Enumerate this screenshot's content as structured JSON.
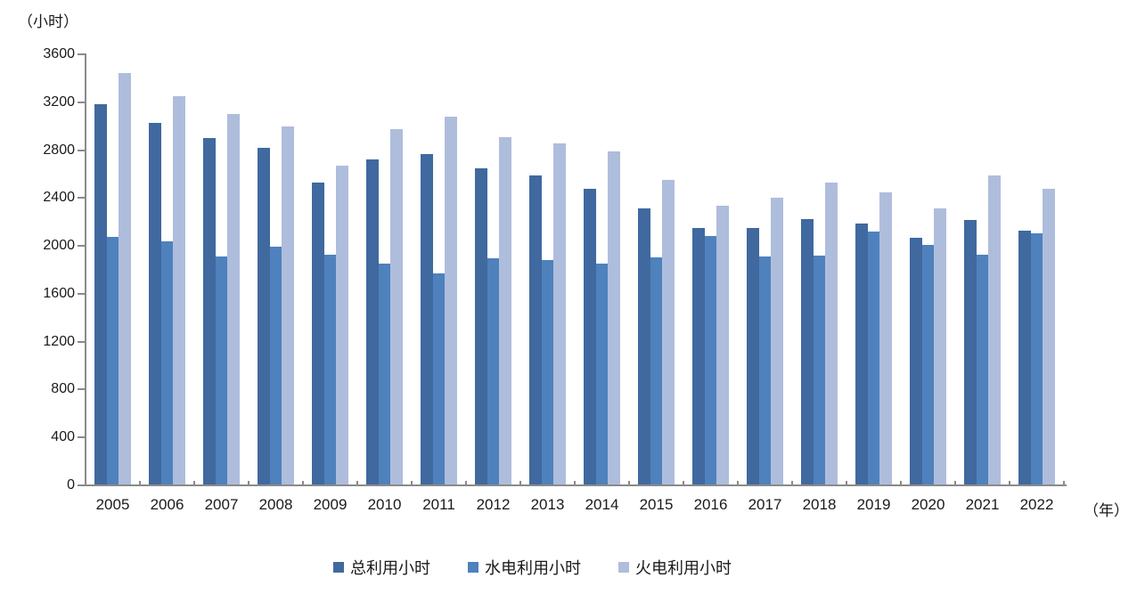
{
  "chart_data": {
    "type": "bar",
    "title": "",
    "y_unit_label": "（小时）",
    "x_unit_label": "（年）",
    "categories": [
      "2005",
      "2006",
      "2007",
      "2008",
      "2009",
      "2010",
      "2011",
      "2012",
      "2013",
      "2014",
      "2015",
      "2016",
      "2017",
      "2018",
      "2019",
      "2020",
      "2021",
      "2022"
    ],
    "series": [
      {
        "name": "总利用小时",
        "color": "#40699F",
        "values": [
          3185,
          3030,
          2900,
          2820,
          2530,
          2725,
          2770,
          2650,
          2590,
          2480,
          2310,
          2150,
          2150,
          2225,
          2190,
          2070,
          2215,
          2130
        ]
      },
      {
        "name": "水电利用小时",
        "color": "#4F81BD",
        "values": [
          2075,
          2035,
          1910,
          1990,
          1930,
          1850,
          1770,
          1900,
          1885,
          1850,
          1905,
          2085,
          1910,
          1920,
          2120,
          2005,
          1925,
          2105
        ]
      },
      {
        "name": "火电利用小时",
        "color": "#AFBDDC",
        "values": [
          3445,
          3250,
          3100,
          3000,
          2670,
          2975,
          3080,
          2910,
          2860,
          2790,
          2550,
          2335,
          2400,
          2530,
          2450,
          2310,
          2590,
          2480
        ]
      }
    ],
    "ylim": [
      0,
      3600
    ],
    "ytick_step": 400,
    "yticks": [
      0,
      400,
      800,
      1200,
      1600,
      2000,
      2400,
      2800,
      3200,
      3600
    ],
    "grid": false,
    "legend_position": "bottom",
    "axis_color": "#8A8A8A",
    "text_color": "#1A1A1A"
  }
}
